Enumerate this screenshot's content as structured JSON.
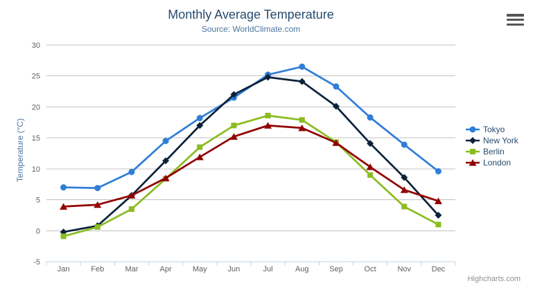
{
  "chart_data": {
    "type": "line",
    "title": "Monthly Average Temperature",
    "subtitle": "Source: WorldClimate.com",
    "categories": [
      "Jan",
      "Feb",
      "Mar",
      "Apr",
      "May",
      "Jun",
      "Jul",
      "Aug",
      "Sep",
      "Oct",
      "Nov",
      "Dec"
    ],
    "xlabel": "",
    "ylabel": "Temperature (°C)",
    "ylim": [
      -5,
      30
    ],
    "ytick_step": 5,
    "grid": true,
    "legend_position": "right-middle",
    "series": [
      {
        "name": "Tokyo",
        "color": "#2f7ed8",
        "marker": "circle",
        "values": [
          7.0,
          6.9,
          9.5,
          14.5,
          18.2,
          21.5,
          25.2,
          26.5,
          23.3,
          18.3,
          13.9,
          9.6
        ]
      },
      {
        "name": "New York",
        "color": "#0d233a",
        "marker": "diamond",
        "values": [
          -0.2,
          0.8,
          5.7,
          11.3,
          17.0,
          22.0,
          24.8,
          24.1,
          20.1,
          14.1,
          8.6,
          2.5
        ]
      },
      {
        "name": "Berlin",
        "color": "#8bbc21",
        "marker": "square",
        "values": [
          -0.9,
          0.6,
          3.5,
          8.4,
          13.5,
          17.0,
          18.6,
          17.9,
          14.3,
          9.0,
          3.9,
          1.0
        ]
      },
      {
        "name": "London",
        "color": "#910000",
        "marker": "triangle",
        "values": [
          3.9,
          4.2,
          5.7,
          8.5,
          11.9,
          15.2,
          17.0,
          16.6,
          14.2,
          10.3,
          6.6,
          4.8
        ]
      }
    ]
  },
  "credits": {
    "text": "Highcharts.com"
  },
  "icons": {
    "export_menu": "hamburger-icon"
  },
  "colors": {
    "title": "#274b6d",
    "subtitle": "#4d759e",
    "axis_title": "#4d759e",
    "axis_labels": "#606060",
    "axis_line": "#c0d0e0",
    "grid": "#c0c0c0",
    "legend_text": "#274b6d",
    "credits": "#909090",
    "menu_icon": "#555555",
    "background": "#ffffff"
  }
}
